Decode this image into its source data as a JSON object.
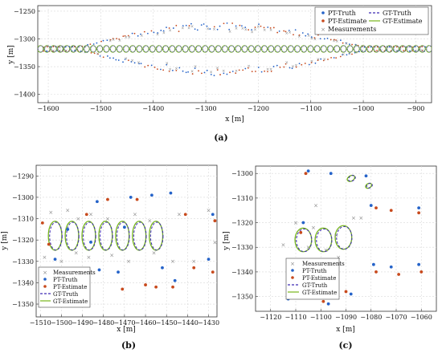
{
  "chart_data": [
    {
      "type": "scatter",
      "panel_label": "(a)",
      "xlabel": "x [m]",
      "ylabel": "y [m]",
      "xlim": [
        -1620,
        -870
      ],
      "ylim": [
        -1415,
        -1240
      ],
      "xticks": [
        -1600,
        -1500,
        -1400,
        -1300,
        -1200,
        -1100,
        -1000,
        -900
      ],
      "xtick_labels": [
        "−1600",
        "−1500",
        "−1400",
        "−1300",
        "−1200",
        "−1100",
        "−1000",
        "−900"
      ],
      "yticks": [
        -1250,
        -1300,
        -1350,
        -1400
      ],
      "ytick_labels": [
        "−1250",
        "−1300",
        "−1350",
        "−1400"
      ],
      "grid": true,
      "legend_position": "top-right",
      "legend": [
        "PT-Truth",
        "GT-Truth",
        "PT-Estimate",
        "GT-Estimate",
        "Measurements"
      ],
      "point_cloud": {
        "x_start": -1610,
        "x_end": -880,
        "center_y": -1318,
        "lens_start": -1540,
        "lens_end": -1000,
        "max_half_spread": 42
      },
      "ellipse_centers": {
        "x_start": -1615,
        "x_end": -875,
        "count": 60,
        "y": -1318
      }
    },
    {
      "type": "scatter",
      "panel_label": "(b)",
      "xlabel": "x [m]",
      "ylabel": "y [m]",
      "xlim": [
        -1512,
        -1426
      ],
      "ylim": [
        -1356,
        -1285
      ],
      "xticks": [
        -1510,
        -1500,
        -1490,
        -1480,
        -1470,
        -1460,
        -1450,
        -1440,
        -1430
      ],
      "xtick_labels": [
        "−1510",
        "−1500",
        "−1490",
        "−1480",
        "−1470",
        "−1460",
        "−1450",
        "−1440",
        "−1430"
      ],
      "yticks": [
        -1290,
        -1300,
        -1310,
        -1320,
        -1330,
        -1340,
        -1350
      ],
      "ytick_labels": [
        "−1290",
        "−1300",
        "−1310",
        "−1320",
        "−1330",
        "−1340",
        "−1350"
      ],
      "grid": true,
      "legend_position": "bottom-left",
      "legend": [
        "Measurements",
        "PT-Truth",
        "PT-Estimate",
        "GT-Truth",
        "GT-Estimate"
      ],
      "ellipses": [
        {
          "cx": -1503,
          "cy": -1318,
          "rx": 3.2,
          "ry": 6.8
        },
        {
          "cx": -1495,
          "cy": -1318,
          "rx": 3.2,
          "ry": 6.8
        },
        {
          "cx": -1487,
          "cy": -1318,
          "rx": 3.2,
          "ry": 6.8
        },
        {
          "cx": -1479,
          "cy": -1318,
          "rx": 3.2,
          "ry": 6.8
        },
        {
          "cx": -1471,
          "cy": -1318,
          "rx": 3.2,
          "ry": 6.8
        },
        {
          "cx": -1463,
          "cy": -1318,
          "rx": 3.2,
          "ry": 6.8
        },
        {
          "cx": -1455,
          "cy": -1318,
          "rx": 3.2,
          "ry": 6.8
        }
      ],
      "pt_truth": [
        [
          -1483,
          -1302
        ],
        [
          -1467,
          -1300
        ],
        [
          -1457,
          -1299
        ],
        [
          -1448,
          -1298
        ],
        [
          -1428,
          -1308
        ],
        [
          -1497,
          -1315
        ],
        [
          -1486,
          -1321
        ],
        [
          -1452,
          -1333
        ],
        [
          -1473,
          -1335
        ],
        [
          -1495,
          -1337
        ],
        [
          -1446,
          -1339
        ],
        [
          -1430,
          -1329
        ],
        [
          -1482,
          -1334
        ],
        [
          -1470,
          -1314
        ],
        [
          -1503,
          -1329
        ]
      ],
      "pt_estimate": [
        [
          -1478,
          -1301
        ],
        [
          -1464,
          -1301
        ],
        [
          -1441,
          -1308
        ],
        [
          -1427,
          -1311
        ],
        [
          -1506,
          -1322
        ],
        [
          -1455,
          -1342
        ],
        [
          -1460,
          -1341
        ],
        [
          -1437,
          -1333
        ],
        [
          -1428,
          -1335
        ],
        [
          -1447,
          -1342
        ],
        [
          -1488,
          -1308
        ],
        [
          -1500,
          -1341
        ],
        [
          -1471,
          -1343
        ],
        [
          -1509,
          -1312
        ]
      ],
      "measurements": [
        [
          -1505,
          -1307
        ],
        [
          -1497,
          -1306
        ],
        [
          -1492,
          -1310
        ],
        [
          -1486,
          -1308
        ],
        [
          -1478,
          -1310
        ],
        [
          -1465,
          -1308
        ],
        [
          -1458,
          -1311
        ],
        [
          -1444,
          -1308
        ],
        [
          -1430,
          -1306
        ],
        [
          -1508,
          -1328
        ],
        [
          -1500,
          -1330
        ],
        [
          -1493,
          -1326
        ],
        [
          -1487,
          -1328
        ],
        [
          -1476,
          -1327
        ],
        [
          -1468,
          -1330
        ],
        [
          -1456,
          -1326
        ],
        [
          -1447,
          -1330
        ],
        [
          -1437,
          -1330
        ],
        [
          -1427,
          -1321
        ]
      ]
    },
    {
      "type": "scatter",
      "panel_label": "(c)",
      "xlabel": "x [m]",
      "ylabel": "y [m]",
      "xlim": [
        -1126,
        -1054
      ],
      "ylim": [
        -1356,
        -1297
      ],
      "xticks": [
        -1120,
        -1110,
        -1100,
        -1090,
        -1080,
        -1070,
        -1060
      ],
      "xtick_labels": [
        "−1120",
        "−1110",
        "−1100",
        "−1090",
        "−1080",
        "−1070",
        "−1060"
      ],
      "yticks": [
        -1300,
        -1310,
        -1320,
        -1330,
        -1340,
        -1350
      ],
      "ytick_labels": [
        "−1300",
        "−1310",
        "−1320",
        "−1330",
        "−1340",
        "−1350"
      ],
      "grid": true,
      "legend_position": "bottom-center",
      "legend": [
        "Measurements",
        "PT-Truth",
        "PT-Estimate",
        "GT-Truth",
        "GT-Estimate"
      ],
      "ellipses": [
        {
          "cx": -1107,
          "cy": -1327,
          "rx": 3.3,
          "ry": 4.8,
          "angle": 0
        },
        {
          "cx": -1099,
          "cy": -1327,
          "rx": 3.3,
          "ry": 4.8,
          "angle": 0
        },
        {
          "cx": -1091,
          "cy": -1326,
          "rx": 3.3,
          "ry": 4.8,
          "angle": 0
        },
        {
          "cx": -1088,
          "cy": -1302,
          "rx": 1.6,
          "ry": 1.1,
          "angle": -30
        },
        {
          "cx": -1081,
          "cy": -1305,
          "rx": 1.3,
          "ry": 0.9,
          "angle": -30
        }
      ],
      "pt_truth": [
        [
          -1105,
          -1299
        ],
        [
          -1096,
          -1300
        ],
        [
          -1082,
          -1301
        ],
        [
          -1080,
          -1313
        ],
        [
          -1061,
          -1314
        ],
        [
          -1107,
          -1320
        ],
        [
          -1079,
          -1337
        ],
        [
          -1072,
          -1338
        ],
        [
          -1061,
          -1337
        ],
        [
          -1088,
          -1349
        ],
        [
          -1097,
          -1353
        ],
        [
          -1113,
          -1351
        ]
      ],
      "pt_estimate": [
        [
          -1106,
          -1300
        ],
        [
          -1078,
          -1314
        ],
        [
          -1072,
          -1315
        ],
        [
          -1061,
          -1316
        ],
        [
          -1078,
          -1340
        ],
        [
          -1069,
          -1341
        ],
        [
          -1060,
          -1340
        ],
        [
          -1090,
          -1348
        ],
        [
          -1099,
          -1352
        ],
        [
          -1112,
          -1350
        ],
        [
          -1108,
          -1324
        ]
      ],
      "measurements": [
        [
          -1110,
          -1320
        ],
        [
          -1103,
          -1322
        ],
        [
          -1094,
          -1325
        ],
        [
          -1087,
          -1318
        ],
        [
          -1115,
          -1329
        ],
        [
          -1105,
          -1330
        ],
        [
          -1098,
          -1331
        ],
        [
          -1093,
          -1334
        ],
        [
          -1102,
          -1313
        ],
        [
          -1084,
          -1318
        ]
      ]
    }
  ],
  "colors": {
    "pt_truth": "#2563c9",
    "pt_estimate": "#c84a1d",
    "gt_truth": "#3d2bb3",
    "gt_estimate": "#77b61c",
    "measurements": "#8a8a8a"
  }
}
